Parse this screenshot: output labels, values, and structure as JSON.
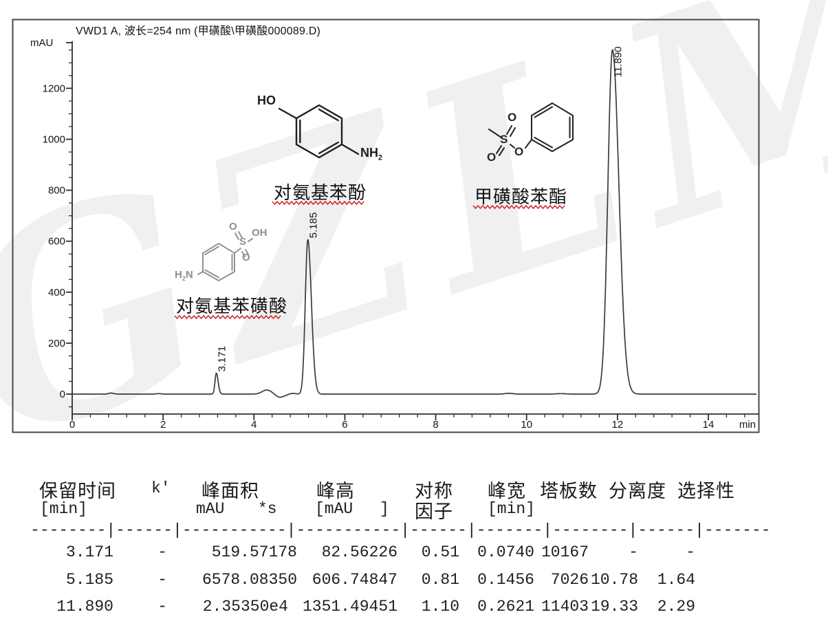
{
  "watermark": "GZLM",
  "chart_data": {
    "type": "line",
    "title": "VWD1 A, 波长=254 nm (甲磺酸\\甲磺酸000089.D)",
    "ylabel": "mAU",
    "xlabel": "min",
    "xlim": [
      0,
      15.05
    ],
    "ylim": [
      -78,
      1385
    ],
    "x_major_ticks": [
      0,
      2,
      4,
      6,
      8,
      10,
      12,
      14
    ],
    "x_minor_step": 0.4,
    "y_major_ticks": [
      0,
      200,
      400,
      600,
      800,
      1000,
      1200
    ],
    "y_minor_step": 50,
    "grid": false,
    "legend": "none",
    "peaks": [
      {
        "rt": 3.171,
        "label": "3.171",
        "height_mau": 82.56226,
        "halfwidth_min": 0.074
      },
      {
        "rt": 5.185,
        "label": "5.185",
        "height_mau": 606.74847,
        "halfwidth_min": 0.1456
      },
      {
        "rt": 11.89,
        "label": "11.890",
        "height_mau": 1351.49451,
        "halfwidth_min": 0.2621
      }
    ],
    "baseline_features": [
      {
        "t": 0.85,
        "h": 4,
        "w": 0.05
      },
      {
        "t": 1.9,
        "h": 2,
        "w": 0.05
      },
      {
        "t": 4.28,
        "h": 16,
        "w": 0.1
      },
      {
        "t": 4.56,
        "h": -13,
        "w": 0.09
      },
      {
        "t": 4.84,
        "h": 3,
        "w": 0.06
      },
      {
        "t": 9.6,
        "h": 3,
        "w": 0.08
      },
      {
        "t": 10.75,
        "h": 2,
        "w": 0.09
      }
    ]
  },
  "compounds": [
    {
      "name": "对氨基苯酚",
      "atoms": {
        "ho": "HO",
        "nh": "NH",
        "sub": "2"
      }
    },
    {
      "name": "甲磺酸苯酯",
      "atoms": {
        "o_top": "O",
        "s": "S",
        "o_left": "O",
        "o_ester": "O"
      }
    },
    {
      "name": "对氨基苯磺酸",
      "atoms": {
        "o_top": "O",
        "oh": "OH",
        "s": "S",
        "o_bottom": "O",
        "h": "H",
        "sub": "2",
        "n": "N"
      }
    }
  ],
  "table": {
    "headers": {
      "rt": "保留时间",
      "k": "k'",
      "area": "峰面积",
      "height": "峰高",
      "symmetry": "对称",
      "width": "峰宽",
      "plates": "塔板数",
      "resolution": "分离度",
      "selectivity": "选择性"
    },
    "units": {
      "rt": "[min]",
      "area1": "mAU",
      "area2": "*s",
      "height1": "[mAU",
      "height2": "]",
      "symmetry": "因子",
      "width": "[min]"
    },
    "separator": "--------|------|-----------|-----------|------|-------|--------|------|-------",
    "rows": [
      [
        "3.171",
        "-",
        "519.57178",
        "82.56226",
        "0.51",
        "0.0740",
        "10167",
        "-",
        "-"
      ],
      [
        "5.185",
        "-",
        "6578.08350",
        "606.74847",
        "0.81",
        "0.1456",
        "7026",
        "10.78",
        "1.64"
      ],
      [
        "11.890",
        "-",
        "2.35350e4",
        "1351.49451",
        "1.10",
        "0.2621",
        "11403",
        "19.33",
        "2.29"
      ]
    ]
  }
}
